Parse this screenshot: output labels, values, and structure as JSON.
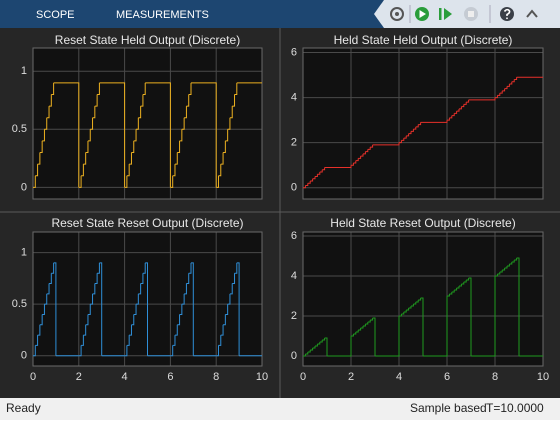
{
  "toolbar": {
    "tabs": [
      "SCOPE",
      "MEASUREMENTS"
    ]
  },
  "chart_data": [
    {
      "type": "line",
      "step": "post",
      "title": "Reset State Held Output (Discrete)",
      "color": "#edb120",
      "grid": true,
      "xtick_labels": false,
      "xlim": [
        0,
        10
      ],
      "xticks": [
        0,
        2,
        4,
        6,
        8,
        10
      ],
      "ylim": [
        -0.1,
        1.2
      ],
      "yticks": [
        0,
        0.5,
        1
      ],
      "x": [
        0,
        0.1,
        0.2,
        0.3,
        0.4,
        0.5,
        0.6,
        0.7,
        0.8,
        0.9,
        2,
        2.1,
        2.2,
        2.3,
        2.4,
        2.5,
        2.6,
        2.7,
        2.8,
        2.9,
        4,
        4.1,
        4.2,
        4.3,
        4.4,
        4.5,
        4.6,
        4.7,
        4.8,
        4.9,
        6,
        6.1,
        6.2,
        6.3,
        6.4,
        6.5,
        6.6,
        6.7,
        6.8,
        6.9,
        8,
        8.1,
        8.2,
        8.3,
        8.4,
        8.5,
        8.6,
        8.7,
        8.8,
        8.9,
        10
      ],
      "values": [
        0,
        0.1,
        0.2,
        0.3,
        0.4,
        0.5,
        0.6,
        0.7,
        0.8,
        0.9,
        0,
        0.1,
        0.2,
        0.3,
        0.4,
        0.5,
        0.6,
        0.7,
        0.8,
        0.9,
        0,
        0.1,
        0.2,
        0.3,
        0.4,
        0.5,
        0.6,
        0.7,
        0.8,
        0.9,
        0,
        0.1,
        0.2,
        0.3,
        0.4,
        0.5,
        0.6,
        0.7,
        0.8,
        0.9,
        0,
        0.1,
        0.2,
        0.3,
        0.4,
        0.5,
        0.6,
        0.7,
        0.8,
        0.9,
        0.9
      ]
    },
    {
      "type": "line",
      "step": "post",
      "title": "Held State Held Output (Discrete)",
      "color": "#e8312a",
      "grid": true,
      "xtick_labels": false,
      "xlim": [
        0,
        10
      ],
      "xticks": [
        0,
        2,
        4,
        6,
        8,
        10
      ],
      "ylim": [
        -0.5,
        6.2
      ],
      "yticks": [
        0,
        2,
        4,
        6
      ],
      "x": [
        0,
        0.1,
        0.2,
        0.3,
        0.4,
        0.5,
        0.6,
        0.7,
        0.8,
        0.9,
        2,
        2.1,
        2.2,
        2.3,
        2.4,
        2.5,
        2.6,
        2.7,
        2.8,
        2.9,
        4,
        4.1,
        4.2,
        4.3,
        4.4,
        4.5,
        4.6,
        4.7,
        4.8,
        4.9,
        6,
        6.1,
        6.2,
        6.3,
        6.4,
        6.5,
        6.6,
        6.7,
        6.8,
        6.9,
        8,
        8.1,
        8.2,
        8.3,
        8.4,
        8.5,
        8.6,
        8.7,
        8.8,
        8.9,
        10
      ],
      "values": [
        0,
        0.1,
        0.2,
        0.3,
        0.4,
        0.5,
        0.6,
        0.7,
        0.8,
        0.9,
        1,
        1.1,
        1.2,
        1.3,
        1.4,
        1.5,
        1.6,
        1.7,
        1.8,
        1.9,
        2,
        2.1,
        2.2,
        2.3,
        2.4,
        2.5,
        2.6,
        2.7,
        2.8,
        2.9,
        3,
        3.1,
        3.2,
        3.3,
        3.4,
        3.5,
        3.6,
        3.7,
        3.8,
        3.9,
        4,
        4.1,
        4.2,
        4.3,
        4.4,
        4.5,
        4.6,
        4.7,
        4.8,
        4.9,
        4.9
      ]
    },
    {
      "type": "line",
      "step": "post",
      "title": "Reset State Reset Output (Discrete)",
      "color": "#2f8fd8",
      "grid": true,
      "xtick_labels": true,
      "xlim": [
        0,
        10
      ],
      "xticks": [
        0,
        2,
        4,
        6,
        8,
        10
      ],
      "ylim": [
        -0.1,
        1.2
      ],
      "yticks": [
        0,
        0.5,
        1
      ],
      "x": [
        0,
        0.1,
        0.2,
        0.3,
        0.4,
        0.5,
        0.6,
        0.7,
        0.8,
        0.9,
        1,
        2,
        2.1,
        2.2,
        2.3,
        2.4,
        2.5,
        2.6,
        2.7,
        2.8,
        2.9,
        3,
        4,
        4.1,
        4.2,
        4.3,
        4.4,
        4.5,
        4.6,
        4.7,
        4.8,
        4.9,
        5,
        6,
        6.1,
        6.2,
        6.3,
        6.4,
        6.5,
        6.6,
        6.7,
        6.8,
        6.9,
        7,
        8,
        8.1,
        8.2,
        8.3,
        8.4,
        8.5,
        8.6,
        8.7,
        8.8,
        8.9,
        9,
        10
      ],
      "values": [
        0,
        0.1,
        0.2,
        0.3,
        0.4,
        0.5,
        0.6,
        0.7,
        0.8,
        0.9,
        0,
        0,
        0.1,
        0.2,
        0.3,
        0.4,
        0.5,
        0.6,
        0.7,
        0.8,
        0.9,
        0,
        0,
        0.1,
        0.2,
        0.3,
        0.4,
        0.5,
        0.6,
        0.7,
        0.8,
        0.9,
        0,
        0,
        0.1,
        0.2,
        0.3,
        0.4,
        0.5,
        0.6,
        0.7,
        0.8,
        0.9,
        0,
        0,
        0.1,
        0.2,
        0.3,
        0.4,
        0.5,
        0.6,
        0.7,
        0.8,
        0.9,
        0,
        0
      ]
    },
    {
      "type": "line",
      "step": "post",
      "title": "Held State Reset Output (Discrete)",
      "color": "#1f9a1f",
      "grid": true,
      "xtick_labels": true,
      "xlim": [
        0,
        10
      ],
      "xticks": [
        0,
        2,
        4,
        6,
        8,
        10
      ],
      "ylim": [
        -0.5,
        6.2
      ],
      "yticks": [
        0,
        2,
        4,
        6
      ],
      "x": [
        0,
        0.1,
        0.2,
        0.3,
        0.4,
        0.5,
        0.6,
        0.7,
        0.8,
        0.9,
        1,
        2,
        2.1,
        2.2,
        2.3,
        2.4,
        2.5,
        2.6,
        2.7,
        2.8,
        2.9,
        3,
        4,
        4.1,
        4.2,
        4.3,
        4.4,
        4.5,
        4.6,
        4.7,
        4.8,
        4.9,
        5,
        6,
        6.1,
        6.2,
        6.3,
        6.4,
        6.5,
        6.6,
        6.7,
        6.8,
        6.9,
        7,
        8,
        8.1,
        8.2,
        8.3,
        8.4,
        8.5,
        8.6,
        8.7,
        8.8,
        8.9,
        9,
        10
      ],
      "values": [
        0,
        0.1,
        0.2,
        0.3,
        0.4,
        0.5,
        0.6,
        0.7,
        0.8,
        0.9,
        0,
        1,
        1.1,
        1.2,
        1.3,
        1.4,
        1.5,
        1.6,
        1.7,
        1.8,
        1.9,
        0,
        2,
        2.1,
        2.2,
        2.3,
        2.4,
        2.5,
        2.6,
        2.7,
        2.8,
        2.9,
        0,
        3,
        3.1,
        3.2,
        3.3,
        3.4,
        3.5,
        3.6,
        3.7,
        3.8,
        3.9,
        0,
        4,
        4.1,
        4.2,
        4.3,
        4.4,
        4.5,
        4.6,
        4.7,
        4.8,
        4.9,
        0,
        0
      ]
    }
  ],
  "status_bar": {
    "status": "Ready",
    "mode": "Sample based",
    "time": "T=10.0000"
  }
}
